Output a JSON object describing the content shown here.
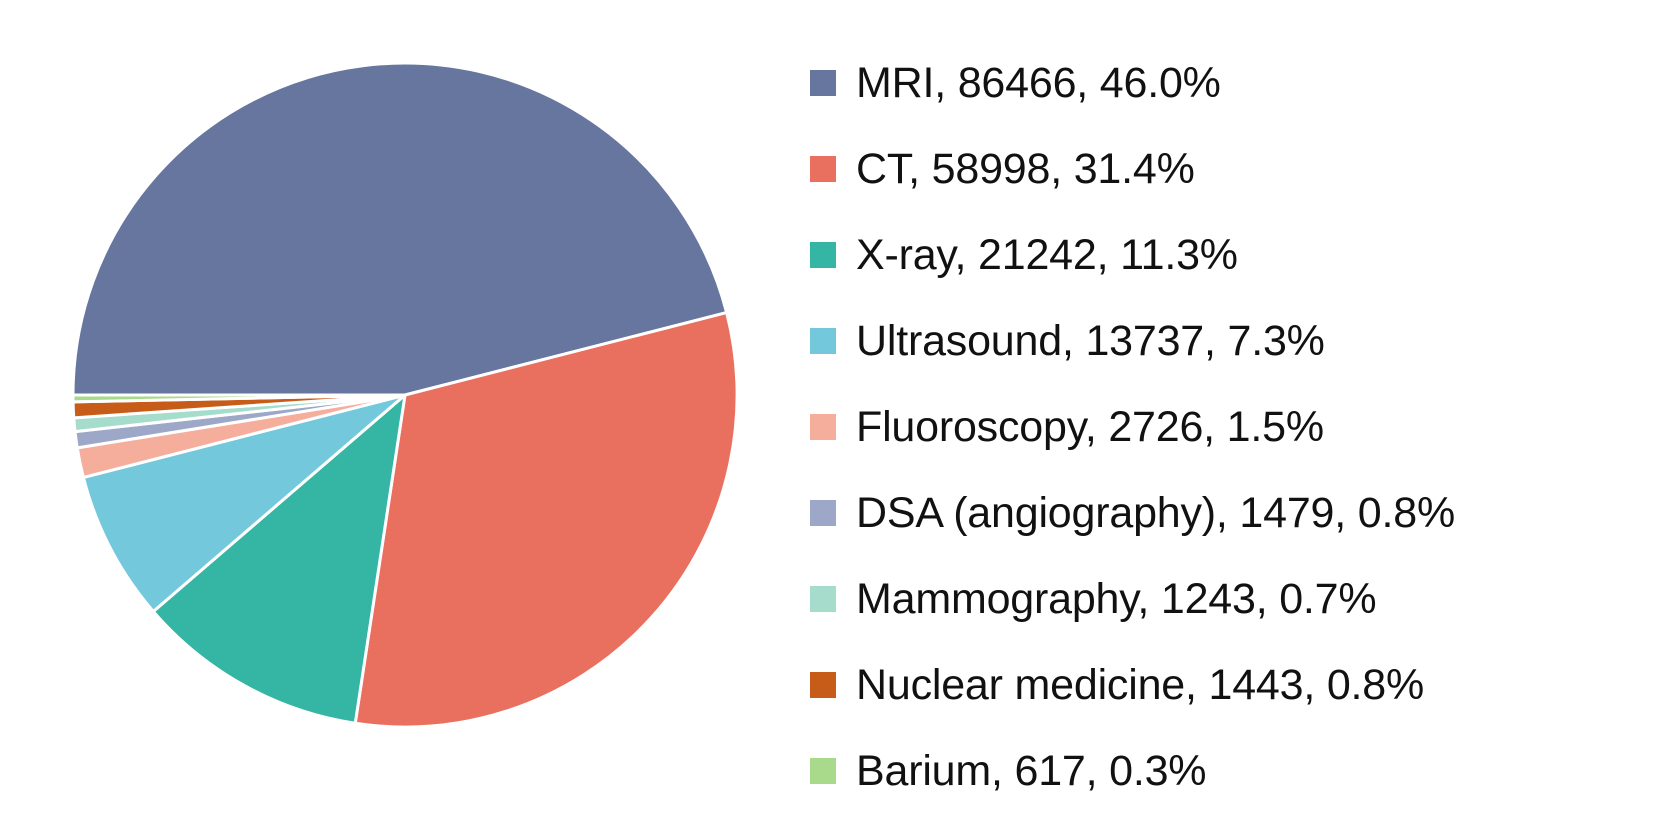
{
  "chart_data": {
    "type": "pie",
    "title": "",
    "slices": [
      {
        "label": "MRI, 86466, 46.0%",
        "value": 86466,
        "percent": 46.0,
        "color": "#66769f"
      },
      {
        "label": "CT, 58998, 31.4%",
        "value": 58998,
        "percent": 31.4,
        "color": "#e96f5e"
      },
      {
        "label": "X-ray, 21242, 11.3%",
        "value": 21242,
        "percent": 11.3,
        "color": "#35b5a3"
      },
      {
        "label": "Ultrasound, 13737, 7.3%",
        "value": 13737,
        "percent": 7.3,
        "color": "#74c8db"
      },
      {
        "label": "Fluoroscopy, 2726, 1.5%",
        "value": 2726,
        "percent": 1.5,
        "color": "#f6ae9c"
      },
      {
        "label": "DSA (angiography), 1479, 0.8%",
        "value": 1479,
        "percent": 0.8,
        "color": "#9da8c9"
      },
      {
        "label": "Mammography, 1243, 0.7%",
        "value": 1243,
        "percent": 0.7,
        "color": "#a6dccb"
      },
      {
        "label": "Nuclear medicine, 1443, 0.8%",
        "value": 1443,
        "percent": 0.8,
        "color": "#c75c18"
      },
      {
        "label": "Barium, 617, 0.3%",
        "value": 617,
        "percent": 0.3,
        "color": "#a9d98b"
      }
    ],
    "legend_position": "right",
    "start_angle": "left (9 o'clock)",
    "direction": "clockwise"
  }
}
